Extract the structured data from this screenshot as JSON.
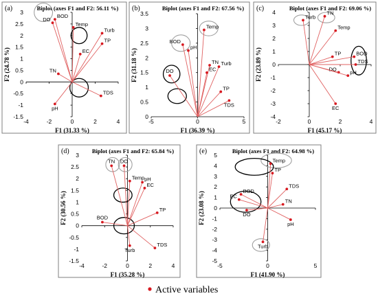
{
  "legend": {
    "label": "Active variables",
    "color": "#d71920"
  },
  "colors": {
    "vector": "#e06060",
    "point": "#d71920",
    "ellipse_black": "#000000",
    "ellipse_grey": "#a0a0a0"
  },
  "chart_data": [
    {
      "type": "scatter",
      "panel": "(a)",
      "title": "Biplot (axes F1 and F2: 56.11 %)",
      "xlabel": "F1 (31.33 %)",
      "ylabel": "F2 (24.78 %)",
      "xlim": [
        -4,
        4
      ],
      "ylim": [
        -1.5,
        3
      ],
      "xticks": [
        -4,
        -2,
        0,
        2,
        4
      ],
      "xtick_labels": [
        "-4",
        "-2",
        "0",
        "2",
        "4"
      ],
      "yticks": [
        -1.5,
        -1,
        -0.5,
        0,
        0.5,
        1,
        1.5,
        2,
        2.5,
        3
      ],
      "ytick_labels": [
        "-1.5",
        "-1",
        "-0.5",
        "0",
        "0.5",
        "1",
        "1.5",
        "2",
        "2.5",
        "3"
      ],
      "points": [
        {
          "name": "BOD",
          "x": -1.5,
          "y": 2.7,
          "label_pos": "right"
        },
        {
          "name": "DO",
          "x": -1.7,
          "y": 2.55,
          "label_pos": "left"
        },
        {
          "name": "Temp",
          "x": 0.1,
          "y": 2.35,
          "label_pos": "right"
        },
        {
          "name": "Turb",
          "x": 2.6,
          "y": 2.1,
          "label_pos": "right"
        },
        {
          "name": "TP",
          "x": 2.6,
          "y": 1.65,
          "label_pos": "right"
        },
        {
          "name": "EC",
          "x": 0.7,
          "y": 1.2,
          "label_pos": "right"
        },
        {
          "name": "TN",
          "x": -1.2,
          "y": 0.35,
          "label_pos": "left"
        },
        {
          "name": "TDS",
          "x": 2.5,
          "y": -0.6,
          "label_pos": "right"
        },
        {
          "name": "pH",
          "x": -1.5,
          "y": -0.95,
          "label_pos": "below"
        }
      ],
      "ellipses": [
        {
          "cx": -2.5,
          "cy": 3.0,
          "rx": 0.8,
          "ry": 0.4,
          "color": "grey"
        },
        {
          "cx": 0.6,
          "cy": 2.0,
          "rx": 0.7,
          "ry": 0.35,
          "color": "black"
        },
        {
          "cx": 0.6,
          "cy": -0.25,
          "rx": 0.8,
          "ry": 0.4,
          "color": "black"
        }
      ]
    },
    {
      "type": "scatter",
      "panel": "(b)",
      "title": "Biplot (axes F1 and F2: 67.56 %)",
      "xlabel": "F1 (36.39 %)",
      "ylabel": "F2 (31.18 %)",
      "xlim": [
        -5,
        5
      ],
      "ylim": [
        0,
        3.5
      ],
      "xticks": [
        -5,
        0,
        5
      ],
      "xtick_labels": [
        "-5",
        "0",
        "5"
      ],
      "yticks": [
        0,
        0.5,
        1,
        1.5,
        2,
        2.5,
        3,
        3.5
      ],
      "ytick_labels": [
        "0",
        "0.5",
        "1",
        "1.5",
        "2",
        "2.5",
        "3",
        "3.5"
      ],
      "points": [
        {
          "name": "Temp",
          "x": 0.7,
          "y": 2.95,
          "label_pos": "right"
        },
        {
          "name": "BOD",
          "x": -1.6,
          "y": 2.45,
          "label_pos": "left"
        },
        {
          "name": "pH",
          "x": -1.0,
          "y": 2.25,
          "label_pos": "right"
        },
        {
          "name": "TN",
          "x": 1.3,
          "y": 1.75,
          "label_pos": "right"
        },
        {
          "name": "Turb",
          "x": 2.3,
          "y": 1.7,
          "label_pos": "right"
        },
        {
          "name": "EC",
          "x": 1.0,
          "y": 1.5,
          "label_pos": "right"
        },
        {
          "name": "DO",
          "x": -3.0,
          "y": 1.4,
          "label_pos": "above"
        },
        {
          "name": "TP",
          "x": 2.5,
          "y": 0.85,
          "label_pos": "right"
        },
        {
          "name": "TDS",
          "x": 3.4,
          "y": 0.55,
          "label_pos": "below"
        }
      ],
      "ellipses": [
        {
          "cx": 1.2,
          "cy": 3.0,
          "rx": 1.0,
          "ry": 0.25,
          "color": "grey"
        },
        {
          "cx": -1.8,
          "cy": 2.5,
          "rx": 1.0,
          "ry": 0.28,
          "color": "grey"
        },
        {
          "cx": -2.8,
          "cy": 1.45,
          "rx": 0.9,
          "ry": 0.3,
          "color": "black"
        },
        {
          "cx": -2.2,
          "cy": 0.7,
          "rx": 1.0,
          "ry": 0.25,
          "color": "black"
        }
      ]
    },
    {
      "type": "scatter",
      "panel": "(c)",
      "title": "Biplot (axes F1 and F2: 69.06 %)",
      "xlabel": "F1 (45.17 %)",
      "ylabel": "F2 (23.89 %)",
      "xlim": [
        -2,
        4
      ],
      "ylim": [
        -4,
        4
      ],
      "xticks": [
        -2,
        0,
        2,
        4
      ],
      "xtick_labels": [
        "-2",
        "0",
        "2",
        "4"
      ],
      "yticks": [
        -4,
        -3,
        -2,
        -1,
        0,
        1,
        2,
        3,
        4
      ],
      "ytick_labels": [
        "-4",
        "-3",
        "-2",
        "-1",
        "0",
        "1",
        "2",
        "3",
        "4"
      ],
      "points": [
        {
          "name": "Turb",
          "x": -0.4,
          "y": 3.4,
          "label_pos": "right"
        },
        {
          "name": "TN",
          "x": 1.0,
          "y": 3.7,
          "label_pos": "right"
        },
        {
          "name": "Temp",
          "x": 1.7,
          "y": 2.6,
          "label_pos": "right"
        },
        {
          "name": "TP",
          "x": 1.5,
          "y": 0.6,
          "label_pos": "right"
        },
        {
          "name": "BOD",
          "x": 2.9,
          "y": 0.6,
          "label_pos": "right"
        },
        {
          "name": "TDS",
          "x": 3.0,
          "y": 0.0,
          "label_pos": "right"
        },
        {
          "name": "DO",
          "x": 1.9,
          "y": -0.6,
          "label_pos": "left"
        },
        {
          "name": "pH",
          "x": 2.5,
          "y": -0.85,
          "label_pos": "right"
        },
        {
          "name": "EC",
          "x": 1.7,
          "y": -3.0,
          "label_pos": "below"
        }
      ],
      "ellipses": [
        {
          "cx": -0.5,
          "cy": 3.4,
          "rx": 0.5,
          "ry": 0.4,
          "color": "grey"
        },
        {
          "cx": 1.1,
          "cy": 3.6,
          "rx": 0.55,
          "ry": 0.4,
          "color": "grey"
        },
        {
          "cx": 3.2,
          "cy": 0.3,
          "rx": 0.5,
          "ry": 1.1,
          "color": "black"
        }
      ]
    },
    {
      "type": "scatter",
      "panel": "(d)",
      "title": "Biplot (axes F1 and F2: 65.84 %)",
      "xlabel": "F1 (35.28 %)",
      "ylabel": "F2 (30.56 %)",
      "xlim": [
        -4,
        4
      ],
      "ylim": [
        -1.5,
        3
      ],
      "xticks": [
        -4,
        -2,
        0,
        2,
        4
      ],
      "xtick_labels": [
        "-4",
        "-2",
        "0",
        "2",
        "4"
      ],
      "yticks": [
        -1.5,
        -1,
        -0.5,
        0,
        0.5,
        1,
        1.5,
        2,
        2.5,
        3
      ],
      "ytick_labels": [
        "-1.5",
        "-1",
        "-0.5",
        "0",
        "0.5",
        "1",
        "1.5",
        "2",
        "2.5",
        "3"
      ],
      "points": [
        {
          "name": "TN",
          "x": -1.4,
          "y": 2.55,
          "label_pos": "above"
        },
        {
          "name": "DO",
          "x": -0.3,
          "y": 2.55,
          "label_pos": "above"
        },
        {
          "name": "Temp",
          "x": 0.2,
          "y": 1.9,
          "label_pos": "right"
        },
        {
          "name": "pH",
          "x": 1.3,
          "y": 1.85,
          "label_pos": "right"
        },
        {
          "name": "EC",
          "x": 1.5,
          "y": 1.6,
          "label_pos": "right"
        },
        {
          "name": "BOD",
          "x": -2.2,
          "y": 0.15,
          "label_pos": "above"
        },
        {
          "name": "TP",
          "x": 2.6,
          "y": 0.55,
          "label_pos": "right"
        },
        {
          "name": "Turb",
          "x": 0.2,
          "y": -0.85,
          "label_pos": "below"
        },
        {
          "name": "TDS",
          "x": 2.4,
          "y": -0.95,
          "label_pos": "right"
        }
      ],
      "ellipses": [
        {
          "cx": -1.3,
          "cy": 2.6,
          "rx": 0.6,
          "ry": 0.3,
          "color": "grey"
        },
        {
          "cx": -0.2,
          "cy": 2.6,
          "rx": 0.6,
          "ry": 0.3,
          "color": "grey"
        },
        {
          "cx": -0.4,
          "cy": 1.3,
          "rx": 0.8,
          "ry": 0.3,
          "color": "black"
        },
        {
          "cx": -0.3,
          "cy": 0.0,
          "rx": 0.9,
          "ry": 0.35,
          "color": "black"
        }
      ]
    },
    {
      "type": "scatter",
      "panel": "(e)",
      "title": "Biplot (axes F1 and F2: 64.98 %)",
      "xlabel": "F1 (41.90 %)",
      "ylabel": "F2 (23.08 %)",
      "xlim": [
        -5,
        5
      ],
      "ylim": [
        -5,
        5
      ],
      "xticks": [
        -5,
        0,
        5
      ],
      "xtick_labels": [
        "-5",
        "0",
        "5"
      ],
      "yticks": [
        -5,
        -4,
        -3,
        -2,
        -1,
        0,
        1,
        2,
        3,
        4,
        5
      ],
      "ytick_labels": [
        "-5",
        "-4",
        "-3",
        "-2",
        "-1",
        "0",
        "1",
        "2",
        "3",
        "4",
        "5"
      ],
      "points": [
        {
          "name": "Temp",
          "x": 0.3,
          "y": 4.2,
          "label_pos": "right"
        },
        {
          "name": "TP",
          "x": 0.5,
          "y": 3.3,
          "label_pos": "right"
        },
        {
          "name": "TDS",
          "x": 2.0,
          "y": 1.8,
          "label_pos": "right"
        },
        {
          "name": "BOD",
          "x": -2.8,
          "y": 1.3,
          "label_pos": "right"
        },
        {
          "name": "EC",
          "x": -3.0,
          "y": 0.8,
          "label_pos": "left"
        },
        {
          "name": "TN",
          "x": 1.6,
          "y": 0.35,
          "label_pos": "right"
        },
        {
          "name": "DO",
          "x": -2.2,
          "y": -0.2,
          "label_pos": "below"
        },
        {
          "name": "pH",
          "x": 2.4,
          "y": -1.1,
          "label_pos": "below"
        },
        {
          "name": "Turb",
          "x": -0.5,
          "y": -3.2,
          "label_pos": "below"
        }
      ],
      "ellipses": [
        {
          "cx": 0.9,
          "cy": 4.5,
          "rx": 1.6,
          "ry": 0.7,
          "color": "grey"
        },
        {
          "cx": -1.4,
          "cy": 3.9,
          "rx": 2.0,
          "ry": 0.8,
          "color": "black"
        },
        {
          "cx": -2.3,
          "cy": 0.6,
          "rx": 1.6,
          "ry": 1.0,
          "color": "black"
        },
        {
          "cx": -0.7,
          "cy": -3.5,
          "rx": 0.9,
          "ry": 0.6,
          "color": "grey"
        }
      ]
    }
  ]
}
